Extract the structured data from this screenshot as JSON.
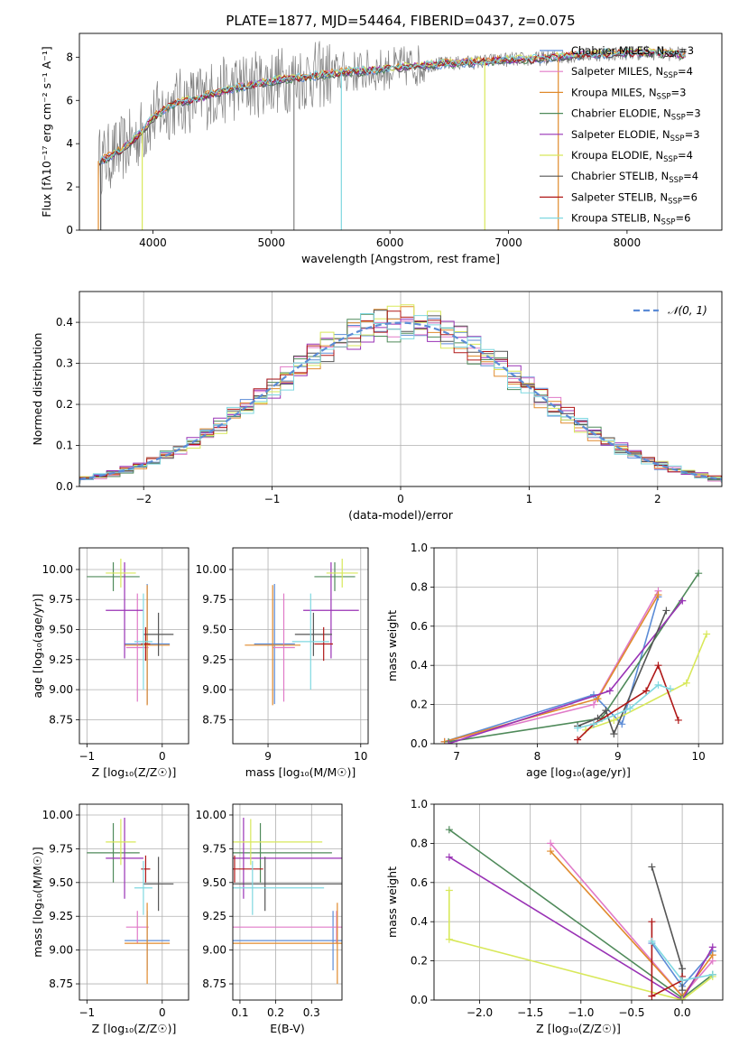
{
  "figure_title": "PLATE=1877, MJD=54464, FIBERID=0437, z=0.075",
  "legend_entries": [
    {
      "imf": "Chabrier",
      "lib": "MILES",
      "nssp": "3",
      "color": "#5b8bd6"
    },
    {
      "imf": "Salpeter",
      "lib": "MILES",
      "nssp": "4",
      "color": "#e07ac8"
    },
    {
      "imf": "Kroupa",
      "lib": "MILES",
      "nssp": "3",
      "color": "#e08a2c"
    },
    {
      "imf": "Chabrier",
      "lib": "ELODIE",
      "nssp": "3",
      "color": "#4f8a5a"
    },
    {
      "imf": "Salpeter",
      "lib": "ELODIE",
      "nssp": "3",
      "color": "#9932b5"
    },
    {
      "imf": "Kroupa",
      "lib": "ELODIE",
      "nssp": "4",
      "color": "#d8e85a"
    },
    {
      "imf": "Chabrier",
      "lib": "STELIB",
      "nssp": "4",
      "color": "#555555"
    },
    {
      "imf": "Salpeter",
      "lib": "STELIB",
      "nssp": "6",
      "color": "#b01818"
    },
    {
      "imf": "Kroupa",
      "lib": "STELIB",
      "nssp": "6",
      "color": "#7fd8e0"
    }
  ],
  "nssp_label": "N",
  "nssp_sub": "SSP",
  "chart_data": [
    {
      "id": "spectrum",
      "type": "line",
      "title": "PLATE=1877, MJD=54464, FIBERID=0437, z=0.075",
      "xlabel": "wavelength [Angstrom, rest frame]",
      "ylabel": "Flux [fλ10⁻¹⁷ erg cm⁻² s⁻¹ A⁻¹]",
      "xlim": [
        3380,
        8800
      ],
      "ylim": [
        0,
        9.1
      ],
      "xticks": [
        4000,
        5000,
        6000,
        7000,
        8000
      ],
      "yticks": [
        0,
        2,
        4,
        6,
        8
      ],
      "grid": false,
      "legend": "top-right",
      "continuum": {
        "x": [
          3540,
          3600,
          3700,
          3800,
          3900,
          4000,
          4100,
          4200,
          4300,
          4400,
          4500,
          4700,
          5000,
          5300,
          5600,
          5900,
          6200,
          6500,
          6800,
          7000,
          7200,
          7400,
          7600,
          7800,
          8000,
          8200,
          8400,
          8500
        ],
        "y": [
          3.2,
          3.3,
          3.6,
          4.0,
          4.5,
          5.2,
          5.6,
          5.9,
          6.0,
          6.1,
          6.3,
          6.6,
          6.9,
          7.1,
          7.3,
          7.4,
          7.6,
          7.7,
          7.8,
          7.9,
          7.9,
          8.0,
          8.1,
          8.15,
          8.2,
          8.2,
          8.15,
          8.1
        ]
      }
    },
    {
      "id": "residuals",
      "type": "histogram",
      "xlabel": "(data-model)/error",
      "ylabel": "Normed distribution",
      "xlim": [
        -2.5,
        2.5
      ],
      "ylim": [
        0,
        0.475
      ],
      "xticks": [
        -2,
        -1,
        0,
        1,
        2
      ],
      "yticks": [
        0.0,
        0.1,
        0.2,
        0.3,
        0.4
      ],
      "grid": true,
      "legend": "top-right",
      "reference_curve": "𝒩(0, 1)"
    },
    {
      "id": "age-vs-Z",
      "type": "errorbar",
      "xlabel": "Z [log₁₀(Z/Z☉)]",
      "ylabel": "age  [log₁₀(age/yr)]",
      "xlim": [
        -1.1,
        0.35
      ],
      "ylim": [
        8.55,
        10.18
      ],
      "xticks": [
        -1,
        0
      ],
      "yticks": [
        8.75,
        9.0,
        9.25,
        9.5,
        9.75,
        10.0
      ],
      "grid": true
    },
    {
      "id": "age-vs-mass",
      "type": "errorbar",
      "xlabel": "mass [log₁₀(M/M☉)]",
      "ylabel": "",
      "xlim": [
        8.62,
        10.08
      ],
      "ylim": [
        8.55,
        10.18
      ],
      "xticks": [
        9,
        10
      ],
      "yticks": [
        8.75,
        9.0,
        9.25,
        9.5,
        9.75,
        10.0
      ],
      "grid": true
    },
    {
      "id": "massweight-vs-age",
      "type": "line",
      "xlabel": "age  [log₁₀(age/yr)]",
      "ylabel": "mass weight",
      "xlim": [
        6.72,
        10.3
      ],
      "ylim": [
        0,
        1.0
      ],
      "xticks": [
        7,
        8,
        9,
        10
      ],
      "yticks": [
        0.0,
        0.2,
        0.4,
        0.6,
        0.8,
        1.0
      ],
      "grid": true
    },
    {
      "id": "mass-vs-Z",
      "type": "errorbar",
      "xlabel": "Z [log₁₀(Z/Z☉)]",
      "ylabel": "mass [log₁₀(M/M☉)]",
      "xlim": [
        -1.1,
        0.35
      ],
      "ylim": [
        8.63,
        10.08
      ],
      "xticks": [
        -1,
        0
      ],
      "yticks": [
        8.75,
        9.0,
        9.25,
        9.5,
        9.75,
        10.0
      ],
      "grid": true
    },
    {
      "id": "mass-vs-EBV",
      "type": "errorbar",
      "xlabel": "E(B-V)",
      "ylabel": "",
      "xlim": [
        0.08,
        0.385
      ],
      "ylim": [
        8.63,
        10.08
      ],
      "xticks": [
        0.1,
        0.2,
        0.3
      ],
      "yticks": [
        8.75,
        9.0,
        9.25,
        9.5,
        9.75,
        10.0
      ],
      "grid": true
    },
    {
      "id": "massweight-vs-Z",
      "type": "line",
      "xlabel": "Z [log₁₀(Z/Z☉)]",
      "ylabel": "mass weight",
      "xlim": [
        -2.45,
        0.4
      ],
      "ylim": [
        0,
        1.0
      ],
      "xticks": [
        -2.0,
        -1.5,
        -1.0,
        -0.5,
        0.0
      ],
      "yticks": [
        0.0,
        0.2,
        0.4,
        0.6,
        0.8,
        1.0
      ],
      "grid": true
    }
  ],
  "weights_vs_age": [
    {
      "series": 0,
      "age": [
        6.85,
        8.7,
        9.05,
        9.5
      ],
      "w": [
        0.01,
        0.25,
        0.1,
        0.75
      ]
    },
    {
      "series": 1,
      "age": [
        6.85,
        8.7,
        9.5
      ],
      "w": [
        0.01,
        0.2,
        0.78
      ]
    },
    {
      "series": 2,
      "age": [
        6.85,
        8.75,
        9.5
      ],
      "w": [
        0.01,
        0.23,
        0.76
      ]
    },
    {
      "series": 3,
      "age": [
        6.9,
        8.8,
        10.0
      ],
      "w": [
        0.01,
        0.13,
        0.87
      ]
    },
    {
      "series": 4,
      "age": [
        6.9,
        8.9,
        9.8
      ],
      "w": [
        0.0,
        0.27,
        0.73
      ]
    },
    {
      "series": 5,
      "age": [
        8.6,
        8.95,
        9.85,
        10.1
      ],
      "w": [
        0.07,
        0.12,
        0.31,
        0.56
      ]
    },
    {
      "series": 6,
      "age": [
        8.5,
        8.75,
        8.85,
        8.95,
        9.6
      ],
      "w": [
        0.09,
        0.13,
        0.17,
        0.05,
        0.68
      ]
    },
    {
      "series": 7,
      "age": [
        8.5,
        8.7,
        9.35,
        9.5,
        9.75
      ],
      "w": [
        0.02,
        0.1,
        0.27,
        0.4,
        0.12
      ]
    },
    {
      "series": 8,
      "age": [
        8.5,
        8.7,
        9.15,
        9.5,
        9.65
      ],
      "w": [
        0.08,
        0.1,
        0.18,
        0.3,
        0.28
      ]
    }
  ],
  "weights_vs_Z": [
    {
      "series": 0,
      "z": [
        -0.3,
        0.0,
        0.3
      ],
      "w": [
        0.29,
        0.07,
        0.25
      ]
    },
    {
      "series": 1,
      "z": [
        -1.3,
        0.0,
        0.3
      ],
      "w": [
        0.8,
        0.02,
        0.2
      ]
    },
    {
      "series": 2,
      "z": [
        -1.3,
        0.0,
        0.3
      ],
      "w": [
        0.76,
        0.02,
        0.23
      ]
    },
    {
      "series": 3,
      "z": [
        -2.3,
        0.0,
        0.3
      ],
      "w": [
        0.87,
        0.01,
        0.13
      ]
    },
    {
      "series": 4,
      "z": [
        -2.3,
        0.0,
        0.3
      ],
      "w": [
        0.73,
        0.0,
        0.27
      ]
    },
    {
      "series": 5,
      "z": [
        -2.3,
        -2.3,
        0.0,
        0.3
      ],
      "w": [
        0.56,
        0.31,
        0.0,
        0.12
      ]
    },
    {
      "series": 6,
      "z": [
        -0.3,
        0.0,
        0.0
      ],
      "w": [
        0.68,
        0.16,
        0.05
      ]
    },
    {
      "series": 7,
      "z": [
        -0.3,
        -0.3,
        0.0,
        0.0
      ],
      "w": [
        0.4,
        0.02,
        0.1,
        0.12
      ]
    },
    {
      "series": 8,
      "z": [
        -0.3,
        0.0,
        0.3
      ],
      "w": [
        0.3,
        0.1,
        0.13
      ]
    }
  ],
  "params": [
    {
      "series": 0,
      "Z": -0.2,
      "Zerr": 0.3,
      "age": 9.38,
      "ageerr": 0.5,
      "mass": 9.07,
      "masserr": 0.22,
      "ebv": 0.36,
      "ebverr": 0.3
    },
    {
      "series": 1,
      "Z": -0.33,
      "Zerr": 0.15,
      "age": 9.35,
      "ageerr": 0.45,
      "mass": 9.17,
      "masserr": 0.12,
      "ebv": 0.37,
      "ebverr": 0.35
    },
    {
      "series": 2,
      "Z": -0.2,
      "Zerr": 0.3,
      "age": 9.37,
      "ageerr": 0.5,
      "mass": 9.05,
      "masserr": 0.3,
      "ebv": 0.372,
      "ebverr": 0.3
    },
    {
      "series": 3,
      "Z": -0.65,
      "Zerr": 0.35,
      "age": 9.94,
      "ageerr": 0.12,
      "mass": 9.72,
      "masserr": 0.22,
      "ebv": 0.157,
      "ebverr": 0.2
    },
    {
      "series": 4,
      "Z": -0.5,
      "Zerr": 0.25,
      "age": 9.66,
      "ageerr": 0.4,
      "mass": 9.68,
      "masserr": 0.3,
      "ebv": 0.11,
      "ebverr": 0.35
    },
    {
      "series": 5,
      "Z": -0.55,
      "Zerr": 0.2,
      "age": 9.97,
      "ageerr": 0.12,
      "mass": 9.8,
      "masserr": 0.17,
      "ebv": 0.13,
      "ebverr": 0.2
    },
    {
      "series": 6,
      "Z": -0.05,
      "Zerr": 0.2,
      "age": 9.46,
      "ageerr": 0.18,
      "mass": 9.49,
      "masserr": 0.2,
      "ebv": 0.17,
      "ebverr": 0.25
    },
    {
      "series": 7,
      "Z": -0.22,
      "Zerr": 0.06,
      "age": 9.38,
      "ageerr": 0.14,
      "mass": 9.6,
      "masserr": 0.1,
      "ebv": 0.085,
      "ebverr": 0.08
    },
    {
      "series": 8,
      "Z": -0.25,
      "Zerr": 0.12,
      "age": 9.4,
      "ageerr": 0.4,
      "mass": 9.46,
      "masserr": 0.2,
      "ebv": 0.135,
      "ebverr": 0.2
    }
  ]
}
